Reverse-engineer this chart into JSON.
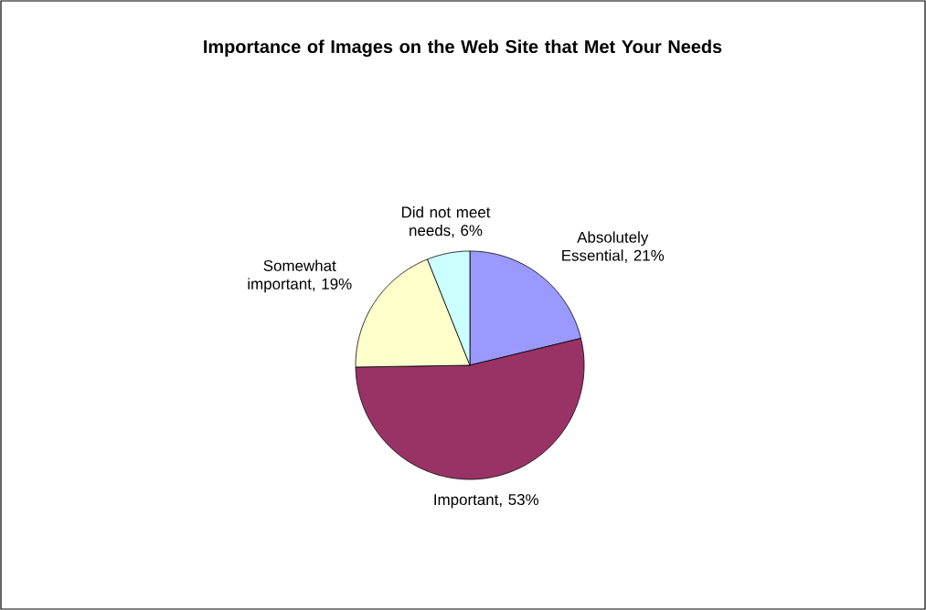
{
  "chart_data": {
    "type": "pie",
    "title": "Importance of Images on the Web Site that Met Your Needs",
    "categories": [
      "Absolutely Essential",
      "Important",
      "Somewhat important",
      "Did not meet needs"
    ],
    "values": [
      21,
      53,
      19,
      6
    ],
    "value_labels": [
      ", 21%",
      ", 53%",
      ", 19%",
      ", 6%"
    ],
    "colors": [
      "#9999ff",
      "#993366",
      "#ffffcc",
      "#ccffff"
    ]
  }
}
